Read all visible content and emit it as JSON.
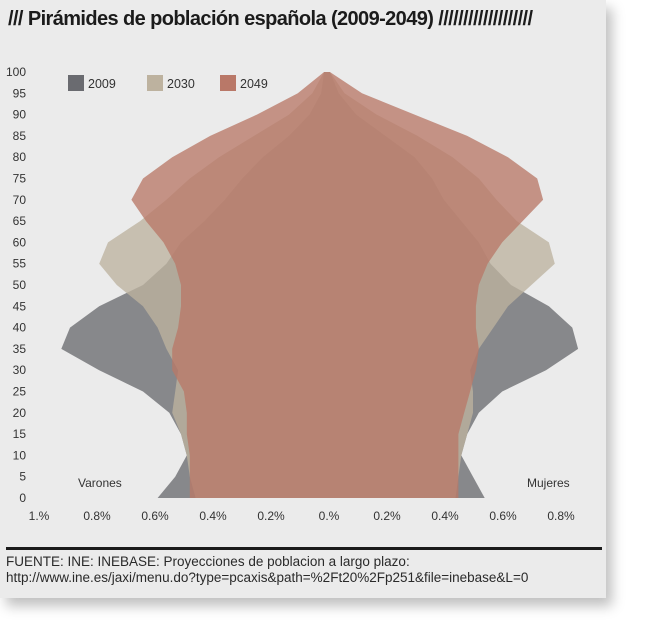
{
  "title": "/// Pirámides de población española (2009-2049) ///////////////////",
  "source": {
    "line1": "FUENTE: INE: INEBASE: Proyecciones de poblacion a largo plazo:",
    "line2": "http://www.ine.es/jaxi/menu.do?type=pcaxis&path=%2Ft20%2Fp251&file=inebase&L=0"
  },
  "colors": {
    "background": "#ebebeb",
    "2009": "#6a6b70",
    "2030": "#bdb29f",
    "2049": "#b97868"
  },
  "chart_data": {
    "type": "area",
    "orientation": "population-pyramid",
    "left_label": "Varones",
    "right_label": "Mujeres",
    "x_ticks": [
      "1.%",
      "0.8%",
      "0.6%",
      "0.4%",
      "0.2%",
      "0.%",
      "0.2%",
      "0.4%",
      "0.6%",
      "0.8%"
    ],
    "xlim": [
      -1.0,
      0.85
    ],
    "y_ticks": [
      0,
      5,
      10,
      15,
      20,
      25,
      30,
      35,
      40,
      45,
      50,
      55,
      60,
      65,
      70,
      75,
      80,
      85,
      90,
      95,
      100
    ],
    "ylim": [
      0,
      100
    ],
    "legend_position": "top-left",
    "series": [
      {
        "name": "2009",
        "ages": [
          0,
          5,
          10,
          15,
          20,
          25,
          30,
          35,
          40,
          45,
          50,
          55,
          60,
          65,
          70,
          75,
          80,
          85,
          90,
          95,
          100
        ],
        "males": [
          0.58,
          0.52,
          0.48,
          0.5,
          0.54,
          0.63,
          0.78,
          0.91,
          0.88,
          0.78,
          0.63,
          0.55,
          0.5,
          0.42,
          0.35,
          0.29,
          0.22,
          0.13,
          0.06,
          0.02,
          0.01
        ],
        "females": [
          0.54,
          0.5,
          0.46,
          0.48,
          0.52,
          0.6,
          0.75,
          0.86,
          0.84,
          0.76,
          0.63,
          0.56,
          0.52,
          0.46,
          0.4,
          0.36,
          0.3,
          0.2,
          0.1,
          0.04,
          0.01
        ]
      },
      {
        "name": "2030",
        "ages": [
          0,
          5,
          10,
          15,
          20,
          25,
          30,
          35,
          40,
          45,
          50,
          55,
          60,
          65,
          70,
          75,
          80,
          85,
          90,
          95,
          100
        ],
        "males": [
          0.45,
          0.47,
          0.48,
          0.5,
          0.53,
          0.52,
          0.51,
          0.55,
          0.58,
          0.63,
          0.72,
          0.78,
          0.75,
          0.64,
          0.55,
          0.47,
          0.37,
          0.25,
          0.13,
          0.05,
          0.01
        ],
        "females": [
          0.44,
          0.45,
          0.46,
          0.48,
          0.5,
          0.5,
          0.49,
          0.52,
          0.57,
          0.62,
          0.7,
          0.78,
          0.76,
          0.65,
          0.58,
          0.52,
          0.43,
          0.31,
          0.17,
          0.06,
          0.01
        ]
      },
      {
        "name": "2049",
        "ages": [
          0,
          5,
          10,
          15,
          20,
          25,
          30,
          35,
          40,
          45,
          50,
          55,
          60,
          65,
          70,
          75,
          80,
          85,
          90,
          95,
          100
        ],
        "males": [
          0.47,
          0.47,
          0.47,
          0.48,
          0.48,
          0.49,
          0.53,
          0.53,
          0.51,
          0.5,
          0.5,
          0.52,
          0.56,
          0.62,
          0.67,
          0.63,
          0.53,
          0.4,
          0.24,
          0.1,
          0.01
        ],
        "females": [
          0.45,
          0.45,
          0.45,
          0.45,
          0.47,
          0.49,
          0.51,
          0.52,
          0.51,
          0.51,
          0.52,
          0.55,
          0.6,
          0.67,
          0.74,
          0.72,
          0.62,
          0.48,
          0.3,
          0.12,
          0.01
        ]
      }
    ]
  }
}
